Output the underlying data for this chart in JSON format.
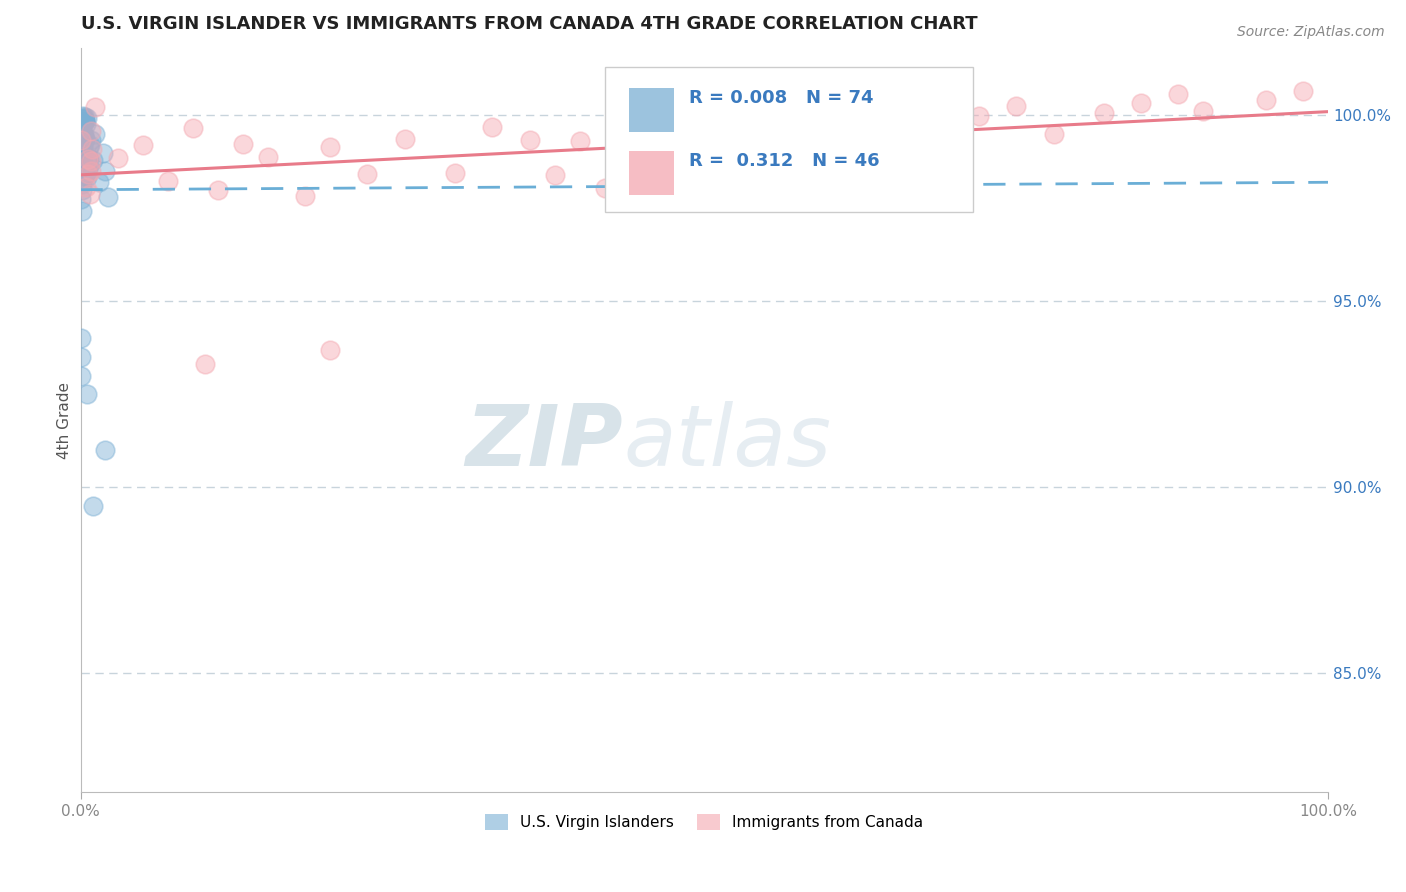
{
  "title": "U.S. VIRGIN ISLANDER VS IMMIGRANTS FROM CANADA 4TH GRADE CORRELATION CHART",
  "source": "Source: ZipAtlas.com",
  "ylabel": "4th Grade",
  "xmin": 0.0,
  "xmax": 1.0,
  "ymin": 0.818,
  "ymax": 1.018,
  "yticks": [
    0.85,
    0.9,
    0.95,
    1.0
  ],
  "ytick_labels": [
    "85.0%",
    "90.0%",
    "95.0%",
    "100.0%"
  ],
  "xtick_labels": [
    "0.0%",
    "100.0%"
  ],
  "blue_color": "#7bafd4",
  "pink_color": "#f4a7b0",
  "trend_blue_color": "#6aaed6",
  "trend_pink_color": "#e87b8a",
  "R_blue": 0.008,
  "N_blue": 74,
  "R_pink": 0.312,
  "N_pink": 46,
  "watermark_zip": "ZIP",
  "watermark_atlas": "atlas",
  "legend_label_blue": "U.S. Virgin Islanders",
  "legend_label_pink": "Immigrants from Canada",
  "legend_text_color": "#3a7abf",
  "background_color": "#ffffff",
  "grid_color": "#c8d4dc"
}
